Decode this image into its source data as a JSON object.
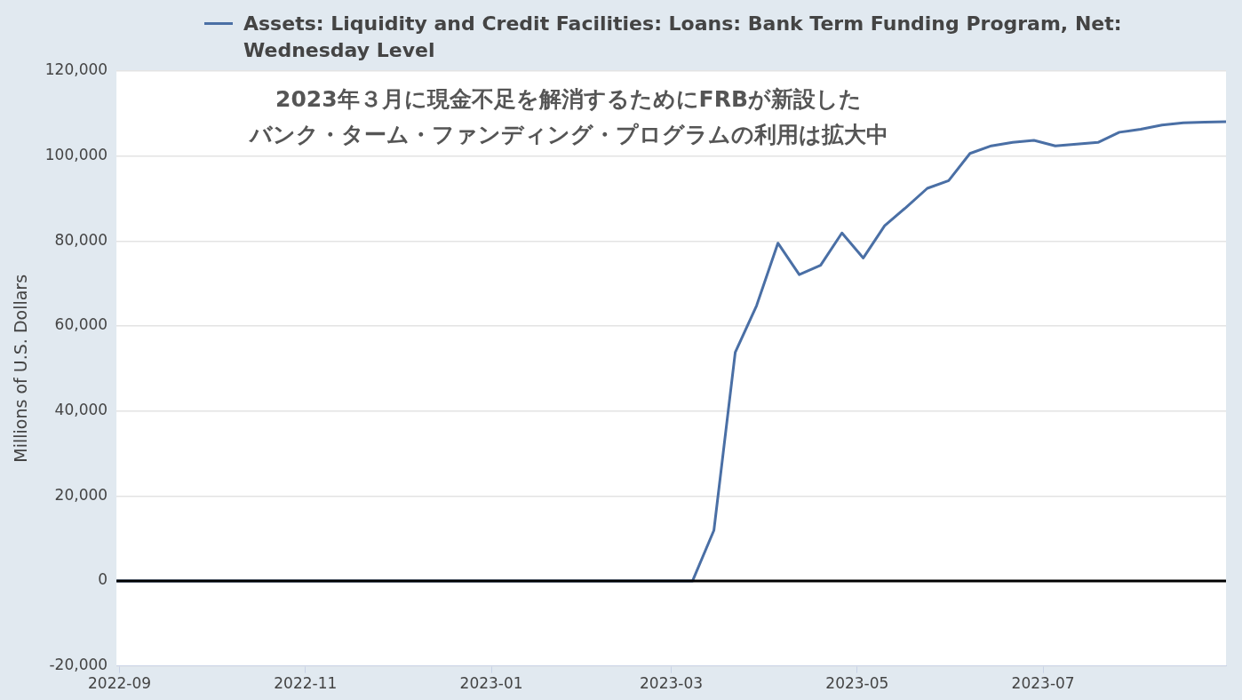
{
  "chart_data": {
    "type": "line",
    "annotations": [
      "2023年３月に現金不足を解消するためにFRBが新設した",
      "バンク・ターム・ファンディング・プログラムの利用は拡大中"
    ],
    "ylabel": "Millions of U.S. Dollars",
    "x": [
      "2022-08-31",
      "2023-03-08",
      "2023-03-15",
      "2023-03-22",
      "2023-03-29",
      "2023-04-05",
      "2023-04-12",
      "2023-04-19",
      "2023-04-26",
      "2023-05-03",
      "2023-05-10",
      "2023-05-17",
      "2023-05-24",
      "2023-05-31",
      "2023-06-07",
      "2023-06-14",
      "2023-06-21",
      "2023-06-28",
      "2023-07-05",
      "2023-07-12",
      "2023-07-19",
      "2023-07-26",
      "2023-08-02",
      "2023-08-09",
      "2023-08-16",
      "2023-08-23",
      "2023-08-30"
    ],
    "series": [
      {
        "name": "Assets: Liquidity and Credit Facilities: Loans: Bank Term Funding Program, Net: Wednesday Level",
        "color": "#4a6fa5",
        "values": [
          0,
          0,
          11900,
          53800,
          64800,
          79500,
          72100,
          74300,
          81900,
          76000,
          83600,
          87900,
          92400,
          94200,
          100600,
          102400,
          103200,
          103700,
          102400,
          102800,
          103200,
          105600,
          106300,
          107300,
          107800,
          108000,
          108100
        ]
      }
    ],
    "xlim": [
      "2022-08-31",
      "2023-08-30"
    ],
    "xticks": [
      "2022-09",
      "2022-11",
      "2023-01",
      "2023-03",
      "2023-05",
      "2023-07"
    ],
    "ylim": [
      -20000,
      120000
    ],
    "yticks": [
      {
        "value": -20000,
        "label": "-20,000"
      },
      0,
      {
        "value": 20000,
        "label": "20,000"
      },
      {
        "value": 40000,
        "label": "40,000"
      },
      {
        "value": 60000,
        "label": "60,000"
      },
      {
        "value": 80000,
        "label": "80,000"
      },
      {
        "value": 100000,
        "label": "100,000"
      },
      {
        "value": 120000,
        "label": "120,000"
      }
    ],
    "ref_lines": [
      {
        "axis": "y",
        "value": 0,
        "color": "#000000"
      }
    ],
    "grid": "y",
    "legend": "top",
    "line_style": "solid",
    "marker": "none"
  }
}
